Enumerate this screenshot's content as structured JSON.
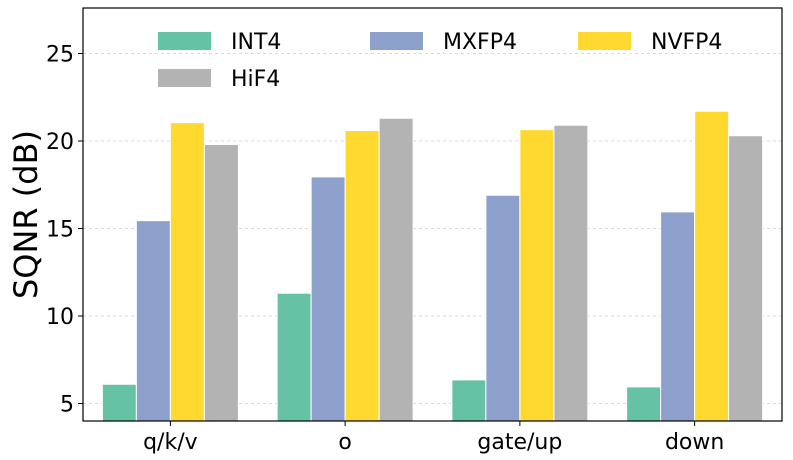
{
  "chart_data": {
    "type": "bar",
    "categories": [
      "q/k/v",
      "o",
      "gate/up",
      "down"
    ],
    "series": [
      {
        "name": "INT4",
        "values": [
          6.1,
          11.3,
          6.35,
          5.95
        ],
        "color": "#66c2a5"
      },
      {
        "name": "MXFP4",
        "values": [
          15.45,
          17.95,
          16.9,
          15.95
        ],
        "color": "#8da0cb"
      },
      {
        "name": "NVFP4",
        "values": [
          21.05,
          20.6,
          20.65,
          21.7
        ],
        "color": "#ffd92f"
      },
      {
        "name": "HiF4",
        "values": [
          19.8,
          21.3,
          20.9,
          20.3
        ],
        "color": "#b3b3b3"
      }
    ],
    "ylabel": "SQNR (dB)",
    "ylim": [
      4,
      27.6
    ],
    "yticks": [
      "5",
      "10",
      "15",
      "20",
      "25"
    ],
    "grid": true,
    "legend_placement": "top"
  }
}
